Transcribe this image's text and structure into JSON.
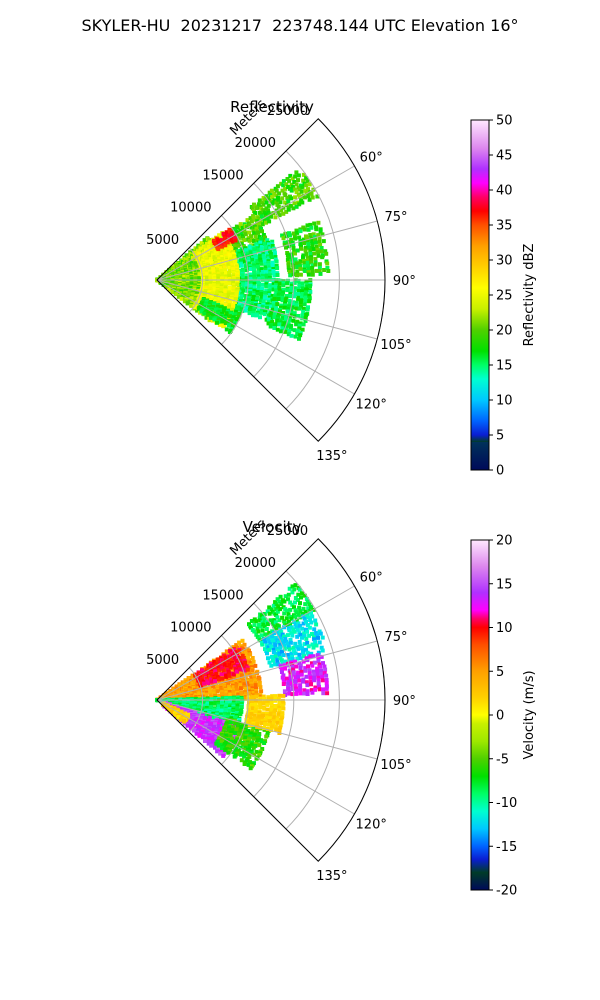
{
  "figure_title": "SKYLER-HU  20231217  223748.144 UTC Elevation 16°",
  "chart_data": [
    {
      "type": "heatmap",
      "subtype": "polar-sector",
      "title": "Reflectivity",
      "radial_unit_label": "Meters",
      "radial_ticks": [
        5000,
        10000,
        15000,
        20000,
        25000
      ],
      "radial_range": [
        0,
        25000
      ],
      "azimuth_ticks": [
        "60°",
        "75°",
        "90°",
        "105°",
        "120°",
        "135°"
      ],
      "azimuth_range": [
        45,
        135
      ],
      "grid": true,
      "colorbar": {
        "label": "Reflectivity dBZ",
        "ticks": [
          "0",
          "5",
          "10",
          "15",
          "20",
          "25",
          "30",
          "35",
          "40",
          "45",
          "50"
        ],
        "range": [
          0,
          50
        ],
        "stops": [
          [
            0,
            "#000a5a"
          ],
          [
            4,
            "#00325a"
          ],
          [
            4.001,
            "#003c28"
          ],
          [
            5,
            "#0a1ed2"
          ],
          [
            7,
            "#0064ff"
          ],
          [
            10,
            "#00c8ff"
          ],
          [
            13,
            "#00ffd0"
          ],
          [
            15,
            "#00ff66"
          ],
          [
            17,
            "#00e000"
          ],
          [
            20,
            "#50d000"
          ],
          [
            23,
            "#c8f000"
          ],
          [
            26,
            "#ffff00"
          ],
          [
            29,
            "#ffd000"
          ],
          [
            32,
            "#ffa000"
          ],
          [
            35,
            "#ff5000"
          ],
          [
            37,
            "#ff0000"
          ],
          [
            39,
            "#ff0066"
          ],
          [
            41,
            "#ff00ff"
          ],
          [
            43,
            "#b030ff"
          ],
          [
            46,
            "#dd88ee"
          ],
          [
            50,
            "#ffe8ff"
          ]
        ]
      },
      "echoes": [
        {
          "az": [
            52,
            63
          ],
          "r": [
            13000,
            20000
          ],
          "value": 19,
          "jitter": 3
        },
        {
          "az": [
            70,
            88
          ],
          "r": [
            14500,
            19000
          ],
          "value": 18,
          "jitter": 3
        },
        {
          "az": [
            56,
            74
          ],
          "r": [
            8000,
            13000
          ],
          "value": 19,
          "jitter": 3
        },
        {
          "az": [
            70,
            110
          ],
          "r": [
            9000,
            13500
          ],
          "value": 15,
          "jitter": 2
        },
        {
          "az": [
            50,
            128
          ],
          "r": [
            0,
            7500
          ],
          "value": 21,
          "jitter": 3
        },
        {
          "az": [
            54,
            126
          ],
          "r": [
            5000,
            8800
          ],
          "value": 25,
          "jitter": 2
        },
        {
          "az": [
            55,
            63
          ],
          "r": [
            7500,
            10000
          ],
          "value": 37,
          "jitter": 2
        },
        {
          "az": [
            112,
            126
          ],
          "r": [
            5500,
            10000
          ],
          "value": 17,
          "jitter": 2
        },
        {
          "az": [
            90,
            112
          ],
          "r": [
            13000,
            17000
          ],
          "value": 16,
          "jitter": 2
        }
      ]
    },
    {
      "type": "heatmap",
      "subtype": "polar-sector",
      "title": "Velocity",
      "radial_unit_label": "Meters",
      "radial_ticks": [
        5000,
        10000,
        15000,
        20000,
        25000
      ],
      "radial_range": [
        0,
        25000
      ],
      "azimuth_ticks": [
        "60°",
        "75°",
        "90°",
        "105°",
        "120°",
        "135°"
      ],
      "azimuth_range": [
        45,
        135
      ],
      "grid": true,
      "colorbar": {
        "label": "Velocity (m/s)",
        "ticks": [
          "-20",
          "-15",
          "-10",
          "-5",
          "0",
          "5",
          "10",
          "15",
          "20"
        ],
        "range": [
          -20,
          20
        ],
        "stops": [
          [
            -20,
            "#000a5a"
          ],
          [
            -18,
            "#003c28"
          ],
          [
            -16.5,
            "#0a1ed2"
          ],
          [
            -15,
            "#0064ff"
          ],
          [
            -13,
            "#00c8ff"
          ],
          [
            -11,
            "#00ffd0"
          ],
          [
            -9,
            "#00ff66"
          ],
          [
            -7,
            "#00e000"
          ],
          [
            -5,
            "#50d000"
          ],
          [
            -3,
            "#9ee800"
          ],
          [
            -1,
            "#c8f000"
          ],
          [
            0,
            "#ffff00"
          ],
          [
            2,
            "#ffd000"
          ],
          [
            5,
            "#ffa000"
          ],
          [
            8,
            "#ff5000"
          ],
          [
            10,
            "#ff0000"
          ],
          [
            11,
            "#ff0066"
          ],
          [
            12,
            "#ff00ff"
          ],
          [
            14,
            "#b030ff"
          ],
          [
            17,
            "#dd88ee"
          ],
          [
            20,
            "#ffe8ff"
          ]
        ]
      },
      "echoes": [
        {
          "az": [
            50,
            60
          ],
          "r": [
            13000,
            20000
          ],
          "value": -8,
          "jitter": 2
        },
        {
          "az": [
            60,
            74
          ],
          "r": [
            13000,
            19500
          ],
          "value": -12,
          "jitter": 2
        },
        {
          "az": [
            74,
            88
          ],
          "r": [
            14000,
            19000
          ],
          "value": 13,
          "jitter": 2
        },
        {
          "az": [
            55,
            90
          ],
          "r": [
            0,
            11500
          ],
          "value": 5,
          "jitter": 2
        },
        {
          "az": [
            56,
            72
          ],
          "r": [
            5000,
            10500
          ],
          "value": 10,
          "jitter": 1.5
        },
        {
          "az": [
            88,
            112
          ],
          "r": [
            0,
            9500
          ],
          "value": -9,
          "jitter": 2
        },
        {
          "az": [
            108,
            130
          ],
          "r": [
            1000,
            9500
          ],
          "value": 14,
          "jitter": 2
        },
        {
          "az": [
            115,
            130
          ],
          "r": [
            800,
            4000
          ],
          "value": 2,
          "jitter": 1.5
        },
        {
          "az": [
            105,
            126
          ],
          "r": [
            8000,
            13000
          ],
          "value": -6,
          "jitter": 2
        },
        {
          "az": [
            88,
            105
          ],
          "r": [
            10000,
            14000
          ],
          "value": 2,
          "jitter": 1
        }
      ]
    }
  ]
}
